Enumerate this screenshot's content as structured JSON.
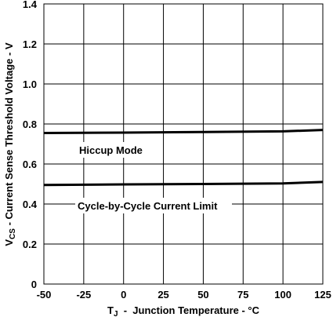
{
  "chart_data": {
    "type": "line",
    "xlabel_prefix": "T",
    "xlabel_sub": "J",
    "xlabel_rest": "  -  Junction Temperature - °C",
    "ylabel_prefix": "V",
    "ylabel_sub": "CS",
    "ylabel_rest": " - Current Sense Threshold Voltage - V",
    "xlim": [
      -50,
      125
    ],
    "ylim": [
      0,
      1.4
    ],
    "xticks": [
      "-50",
      "-25",
      "0",
      "25",
      "50",
      "75",
      "100",
      "125"
    ],
    "yticks": [
      "0",
      "0.2",
      "0.4",
      "0.6",
      "0.8",
      "1.0",
      "1.2",
      "1.4"
    ],
    "grid": true,
    "series": [
      {
        "name": "Hiccup Mode",
        "x": [
          -50,
          0,
          50,
          100,
          125
        ],
        "y": [
          0.755,
          0.757,
          0.76,
          0.763,
          0.77
        ]
      },
      {
        "name": "Cycle-by-Cycle Current Limit",
        "x": [
          -50,
          0,
          50,
          100,
          125
        ],
        "y": [
          0.495,
          0.498,
          0.5,
          0.503,
          0.51
        ]
      }
    ],
    "annotations": [
      "Hiccup Mode",
      "Cycle-by-Cycle Current Limit"
    ]
  }
}
